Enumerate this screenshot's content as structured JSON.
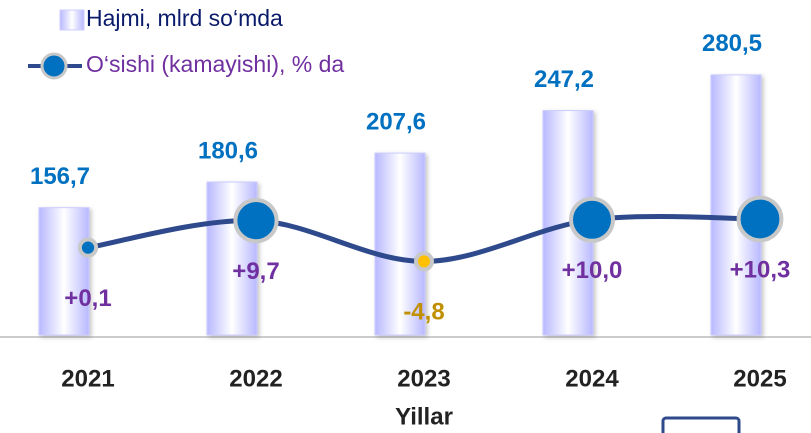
{
  "chart_data": {
    "type": "bar-line",
    "categories": [
      "2021",
      "2022",
      "2023",
      "2024",
      "2025"
    ],
    "xlabel": "Yillar",
    "ylim": [
      38,
      313
    ],
    "y2lim": [
      -31,
      74
    ],
    "series": [
      {
        "name": "Hajmi, mlrd so‘mda",
        "type": "bar",
        "color": "#9999ff",
        "values": [
          156.7,
          180.6,
          207.6,
          247.2,
          280.5
        ],
        "value_labels": [
          "156,7",
          "180,6",
          "207,6",
          "247,2",
          "280,5"
        ]
      },
      {
        "name": "O‘sishi (kamayishi), % da",
        "type": "line",
        "axis": "y2",
        "color": "#0070c0",
        "line_color": "#2e4a8c",
        "negative_color": "#ffc000",
        "values": [
          0.1,
          9.7,
          -4.8,
          10.0,
          10.3
        ],
        "value_labels": [
          "+0,1",
          "+9,7",
          "-4,8",
          "+10,0",
          "+10,3"
        ]
      }
    ]
  }
}
